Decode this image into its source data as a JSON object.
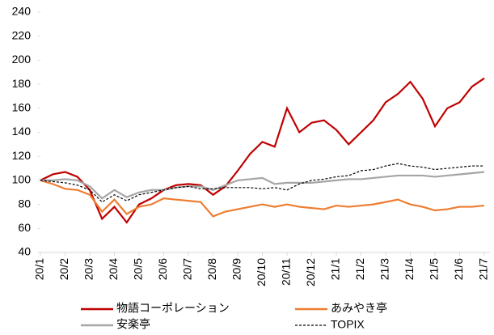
{
  "chart_data": {
    "type": "line",
    "categories": [
      "20/1",
      null,
      "20/2",
      null,
      "20/3",
      null,
      "20/4",
      null,
      "20/5",
      null,
      "20/6",
      null,
      "20/7",
      null,
      "20/8",
      null,
      "20/9",
      null,
      "20/10",
      null,
      "20/11",
      null,
      "20/12",
      null,
      "21/1",
      null,
      "21/2",
      null,
      "21/3",
      null,
      "21/4",
      null,
      "21/5",
      null,
      "21/6",
      null,
      "21/7"
    ],
    "ylim": [
      40,
      240
    ],
    "yticks": [
      40,
      60,
      80,
      100,
      120,
      140,
      160,
      180,
      200,
      220,
      240
    ],
    "series": [
      {
        "name": "物語コーポレーション",
        "color": "#c00000",
        "line_style": "solid",
        "values": [
          100,
          105,
          107,
          103,
          92,
          68,
          78,
          65,
          80,
          85,
          92,
          96,
          97,
          96,
          88,
          95,
          108,
          122,
          132,
          128,
          160,
          140,
          148,
          150,
          142,
          130,
          140,
          150,
          165,
          172,
          182,
          168,
          145,
          160,
          165,
          178,
          185
        ]
      },
      {
        "name": "あみやき亭",
        "color": "#ed7d31",
        "line_style": "solid",
        "values": [
          100,
          97,
          93,
          92,
          88,
          74,
          84,
          72,
          78,
          80,
          85,
          84,
          83,
          82,
          70,
          74,
          76,
          78,
          80,
          78,
          80,
          78,
          77,
          76,
          79,
          78,
          79,
          80,
          82,
          84,
          80,
          78,
          75,
          76,
          78,
          78,
          79
        ]
      },
      {
        "name": "安楽亭",
        "color": "#a5a5a5",
        "line_style": "solid",
        "values": [
          100,
          100,
          101,
          100,
          95,
          85,
          92,
          86,
          90,
          92,
          92,
          94,
          95,
          95,
          92,
          96,
          100,
          101,
          102,
          97,
          98,
          98,
          98,
          99,
          100,
          101,
          101,
          102,
          103,
          104,
          104,
          104,
          103,
          104,
          105,
          106,
          107
        ]
      },
      {
        "name": "TOPIX",
        "color": "#000000",
        "line_style": "dashed",
        "values": [
          100,
          99,
          98,
          96,
          92,
          82,
          88,
          83,
          88,
          90,
          92,
          94,
          95,
          93,
          93,
          94,
          94,
          94,
          93,
          94,
          92,
          97,
          100,
          101,
          103,
          104,
          108,
          109,
          112,
          114,
          112,
          111,
          109,
          110,
          111,
          112,
          112
        ]
      }
    ]
  }
}
